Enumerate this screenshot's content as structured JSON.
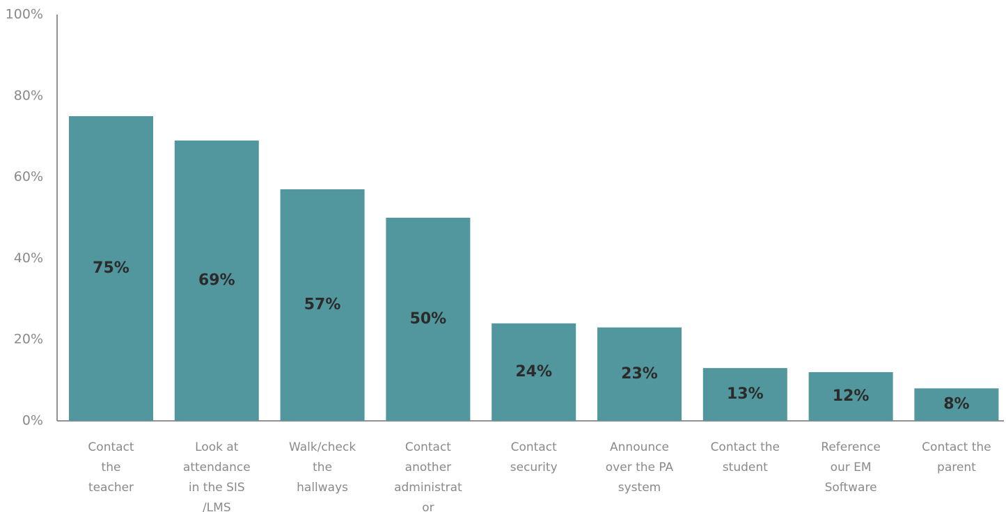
{
  "chart_data": {
    "type": "bar",
    "categories": [
      [
        "Contact",
        "the",
        "teacher"
      ],
      [
        "Look at",
        "attendance",
        "in the SIS",
        "/LMS"
      ],
      [
        "Walk/check",
        "the",
        "hallways"
      ],
      [
        "Contact",
        "another",
        "administrat",
        "or"
      ],
      [
        "Contact",
        "security"
      ],
      [
        "Announce",
        "over the PA",
        "system"
      ],
      [
        "Contact the",
        "student"
      ],
      [
        "Reference",
        "our EM",
        "Software"
      ],
      [
        "Contact the",
        "parent"
      ]
    ],
    "values": [
      75,
      69,
      57,
      50,
      24,
      23,
      13,
      12,
      8
    ],
    "data_labels": [
      "75%",
      "69%",
      "57%",
      "50%",
      "24%",
      "23%",
      "13%",
      "12%",
      "8%"
    ],
    "y_ticks": [
      "0%",
      "20%",
      "40%",
      "60%",
      "80%",
      "100%"
    ],
    "ylim": [
      0,
      100
    ],
    "title": "",
    "xlabel": "",
    "ylabel": "",
    "bar_color": "#52979d",
    "grid": false,
    "legend": "none"
  }
}
